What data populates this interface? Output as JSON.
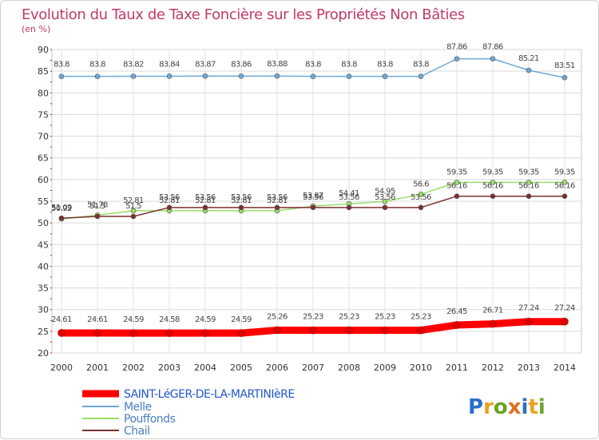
{
  "chart_data": {
    "type": "line",
    "title": "Evolution du Taux de Taxe Foncière sur les Propriétés Non Bâties",
    "subtitle": "(en %)",
    "xlabel": "",
    "ylabel": "",
    "ylim": [
      20,
      90
    ],
    "yticks": [
      20,
      25,
      30,
      35,
      40,
      45,
      50,
      55,
      60,
      65,
      70,
      75,
      80,
      85,
      90
    ],
    "categories": [
      "2000",
      "2001",
      "2002",
      "2003",
      "2004",
      "2005",
      "2006",
      "2007",
      "2008",
      "2009",
      "2010",
      "2011",
      "2012",
      "2013",
      "2014"
    ],
    "series": [
      {
        "name": "SAINT-LéGER-DE-LA-MARTINIèRE",
        "color": "#ff0000",
        "values": [
          24.61,
          24.61,
          24.59,
          24.58,
          24.59,
          24.59,
          25.26,
          25.23,
          25.23,
          25.23,
          25.23,
          26.45,
          26.71,
          27.24,
          27.24
        ],
        "labels": [
          "24.61",
          "24.61",
          "24.59",
          "24.58",
          "24.59",
          "24.59",
          "25.26",
          "25.23",
          "25.23",
          "25.23",
          "25.23",
          "26.45",
          "26.71",
          "27.24",
          "27.24"
        ]
      },
      {
        "name": "Melle",
        "color": "#6ea8d8",
        "values": [
          83.8,
          83.8,
          83.82,
          83.84,
          83.87,
          83.86,
          83.88,
          83.8,
          83.8,
          83.8,
          83.8,
          87.86,
          87.86,
          85.21,
          83.51
        ],
        "labels": [
          "83.8",
          "83.8",
          "83.82",
          "83.84",
          "83.87",
          "83.86",
          "83.88",
          "83.8",
          "83.8",
          "83.8",
          "83.8",
          "87.86",
          "87.86",
          "85.21",
          "83.51"
        ]
      },
      {
        "name": "Pouffonds",
        "color": "#99dd66",
        "values": [
          50.92,
          51.78,
          52.81,
          52.81,
          52.81,
          52.81,
          52.81,
          53.87,
          54.41,
          54.95,
          56.6,
          59.35,
          59.35,
          59.35,
          59.35
        ],
        "labels": [
          "50.92",
          "51.78",
          "52.81",
          "52.81",
          "52.81",
          "52.81",
          "52.81",
          "53.87",
          "54.41",
          "54.95",
          "56.6",
          "59.35",
          "59.35",
          "59.35",
          "59.35"
        ]
      },
      {
        "name": "Chail",
        "color": "#7a3030",
        "values": [
          51.09,
          51.5,
          51.5,
          53.56,
          53.56,
          53.56,
          53.56,
          53.56,
          53.56,
          53.56,
          53.56,
          56.16,
          56.16,
          56.16,
          56.16
        ],
        "labels": [
          "51.09",
          "51.5",
          "51.5",
          "53.56",
          "53.56",
          "53.56",
          "53.56",
          "53.56",
          "53.56",
          "53.56",
          "53.56",
          "56.16",
          "56.16",
          "56.16",
          "56.16"
        ]
      }
    ],
    "grid": true,
    "legend_position": "bottom-left"
  },
  "logo": {
    "text": "Proxiti"
  }
}
